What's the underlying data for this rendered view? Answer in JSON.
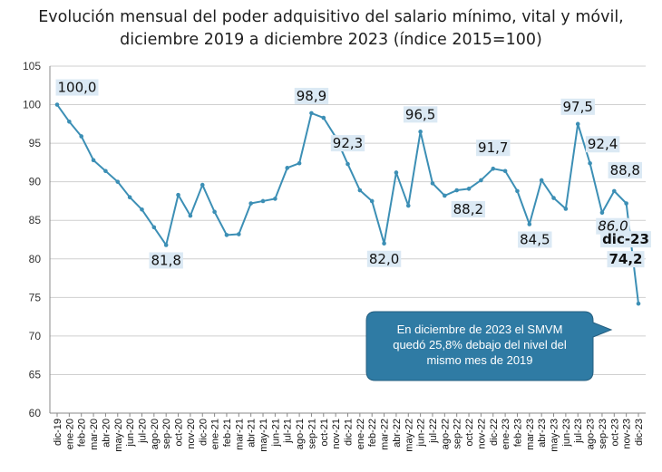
{
  "chart_data": {
    "type": "line",
    "title": "Evolución mensual del poder adquisitivo del salario mínimo, vital y móvil,",
    "subtitle": "diciembre 2019 a diciembre 2023 (índice 2015=100)",
    "xlabel": "",
    "ylabel": "",
    "ylim": [
      60,
      105
    ],
    "yticks": [
      60,
      65,
      70,
      75,
      80,
      85,
      90,
      95,
      100,
      105
    ],
    "grid": true,
    "categories": [
      "dic-19",
      "ene-20",
      "feb-20",
      "mar-20",
      "abr-20",
      "may-20",
      "jun-20",
      "jul-20",
      "ago-20",
      "sep-20",
      "oct-20",
      "nov-20",
      "dic-20",
      "ene-21",
      "feb-21",
      "mar-21",
      "abr-21",
      "may-21",
      "jun-21",
      "jul-21",
      "ago-21",
      "sep-21",
      "oct-21",
      "nov-21",
      "dic-21",
      "ene-22",
      "feb-22",
      "mar-22",
      "abr-22",
      "may-22",
      "jun-22",
      "jul-22",
      "ago-22",
      "sep-22",
      "oct-22",
      "nov-22",
      "dic-22",
      "ene-23",
      "feb-23",
      "mar-23",
      "abr-23",
      "may-23",
      "jun-23",
      "jul-23",
      "ago-23",
      "sep-23",
      "oct-23",
      "nov-23",
      "dic-23"
    ],
    "series": [
      {
        "name": "",
        "color": "#3c8fb5",
        "values": [
          100.0,
          97.8,
          95.9,
          92.8,
          91.4,
          90.0,
          88.0,
          86.4,
          84.1,
          81.8,
          88.3,
          85.6,
          89.6,
          86.1,
          83.1,
          83.2,
          87.2,
          87.5,
          87.8,
          91.8,
          92.4,
          98.9,
          98.3,
          95.8,
          92.3,
          88.9,
          87.5,
          82.0,
          91.2,
          86.9,
          96.5,
          89.8,
          88.2,
          88.9,
          89.1,
          90.2,
          91.7,
          91.4,
          88.8,
          84.5,
          90.2,
          87.9,
          86.5,
          97.5,
          92.4,
          86.0,
          88.8,
          87.2,
          74.2
        ]
      }
    ],
    "data_labels": [
      {
        "index": 0,
        "text": "100,0",
        "italic": false,
        "bold": false
      },
      {
        "index": 9,
        "text": "81,8",
        "italic": false,
        "bold": false
      },
      {
        "index": 21,
        "text": "98,9",
        "italic": false,
        "bold": false
      },
      {
        "index": 24,
        "text": "92,3",
        "italic": false,
        "bold": false
      },
      {
        "index": 27,
        "text": "82,0",
        "italic": false,
        "bold": false
      },
      {
        "index": 30,
        "text": "96,5",
        "italic": false,
        "bold": false
      },
      {
        "index": 32,
        "text": "88,2",
        "italic": false,
        "bold": false
      },
      {
        "index": 36,
        "text": "91,7",
        "italic": false,
        "bold": false
      },
      {
        "index": 39,
        "text": "84,5",
        "italic": false,
        "bold": false
      },
      {
        "index": 43,
        "text": "97,5",
        "italic": false,
        "bold": false
      },
      {
        "index": 44,
        "text": "92,4",
        "italic": false,
        "bold": false
      },
      {
        "index": 45,
        "text": "86,0",
        "italic": true,
        "bold": false
      },
      {
        "index": 46,
        "text": "88,8",
        "italic": false,
        "bold": false
      },
      {
        "index": 48,
        "text": "dic-23",
        "italic": false,
        "bold": true
      },
      {
        "index": 48,
        "text": "74,2",
        "italic": false,
        "bold": true
      }
    ],
    "annotation": {
      "lines": [
        "En diciembre de 2023 el SMVM",
        "quedó 25,8% debajo del nivel del",
        "mismo mes de 2019"
      ],
      "fill": "#2f7ba4"
    }
  }
}
